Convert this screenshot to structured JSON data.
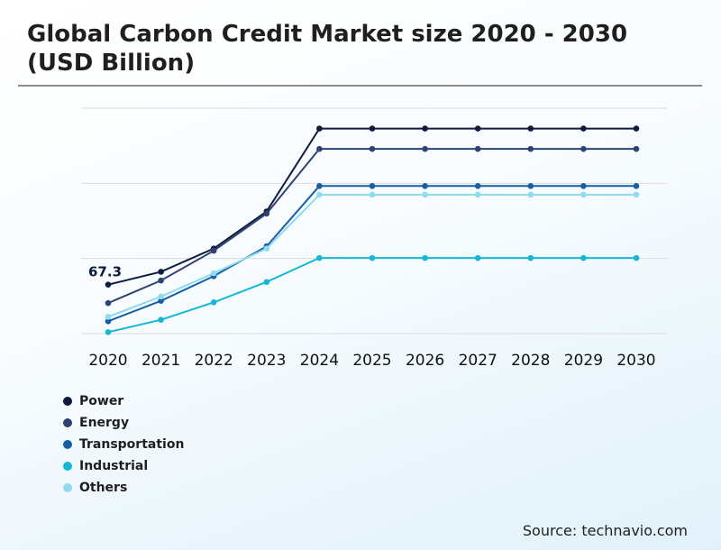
{
  "title": "Global Carbon Credit Market size 2020 - 2030 (USD Billion)",
  "source": "Source: technavio.com",
  "chart_data": {
    "type": "line",
    "title": "Global Carbon Credit Market size 2020 - 2030 (USD Billion)",
    "xlabel": "",
    "ylabel": "",
    "categories": [
      "2020",
      "2021",
      "2022",
      "2023",
      "2024",
      "2025",
      "2026",
      "2027",
      "2028",
      "2029",
      "2030"
    ],
    "ylim": [
      0,
      310
    ],
    "grid": true,
    "legend_position": "bottom-left",
    "series": [
      {
        "name": "Power",
        "color": "#0d1b3e",
        "values": [
          67.3,
          85,
          117,
          168,
          282,
          282,
          282,
          282,
          282,
          282,
          282
        ]
      },
      {
        "name": "Energy",
        "color": "#2e4373",
        "values": [
          42,
          73,
          114,
          165,
          254,
          254,
          254,
          254,
          254,
          254,
          254
        ]
      },
      {
        "name": "Transportation",
        "color": "#175ea6",
        "values": [
          17,
          45,
          79,
          120,
          203,
          203,
          203,
          203,
          203,
          203,
          203
        ]
      },
      {
        "name": "Industrial",
        "color": "#14b7d6",
        "values": [
          2,
          19,
          43,
          71,
          104,
          104,
          104,
          104,
          104,
          104,
          104
        ]
      },
      {
        "name": "Others",
        "color": "#8fdbef",
        "values": [
          23,
          51,
          83,
          117,
          191,
          191,
          191,
          191,
          191,
          191,
          191
        ]
      }
    ],
    "annotations": [
      {
        "series": "Power",
        "category": "2020",
        "text": "67.3"
      }
    ]
  }
}
